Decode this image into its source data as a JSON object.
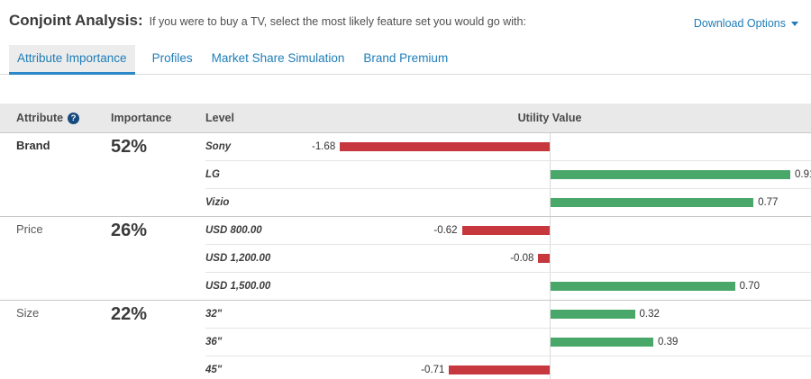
{
  "header": {
    "title": "Conjoint Analysis:",
    "subtitle": "If you were to buy a TV, select the most likely feature set you would go with:",
    "download_label": "Download Options"
  },
  "icons": {
    "help_icon": "?",
    "caret_down_icon": "▾"
  },
  "tabs": [
    {
      "label": "Attribute Importance",
      "active": true
    },
    {
      "label": "Profiles",
      "active": false
    },
    {
      "label": "Market Share Simulation",
      "active": false
    },
    {
      "label": "Brand Premium",
      "active": false
    }
  ],
  "table_headers": {
    "attribute": "Attribute",
    "importance": "Importance",
    "level": "Level",
    "utility": "Utility Value"
  },
  "chart_data": {
    "type": "bar",
    "orientation": "horizontal-diverging",
    "value_axis_label": "Utility Value",
    "negative_color": "#c7383e",
    "positive_color": "#4aa76a",
    "axis_color": "#d9d9d9",
    "groups": [
      {
        "attribute": "Brand",
        "importance": "52%",
        "levels": [
          {
            "label": "Sony",
            "value": -1.68
          },
          {
            "label": "LG",
            "value": 0.91
          },
          {
            "label": "Vizio",
            "value": 0.77
          }
        ]
      },
      {
        "attribute": "Price",
        "importance": "26%",
        "levels": [
          {
            "label": "USD 800.00",
            "value": -0.62
          },
          {
            "label": "USD 1,200.00",
            "value": -0.08
          },
          {
            "label": "USD 1,500.00",
            "value": 0.7
          }
        ]
      },
      {
        "attribute": "Size",
        "importance": "22%",
        "levels": [
          {
            "label": "32\"",
            "value": 0.32
          },
          {
            "label": "36\"",
            "value": 0.39
          },
          {
            "label": "45\"",
            "value": -0.71
          }
        ]
      }
    ]
  },
  "colors": {
    "accent_blue": "#1e7db8",
    "active_tab_underline": "#2b87c6",
    "thead_bg": "#e9e9e9"
  }
}
